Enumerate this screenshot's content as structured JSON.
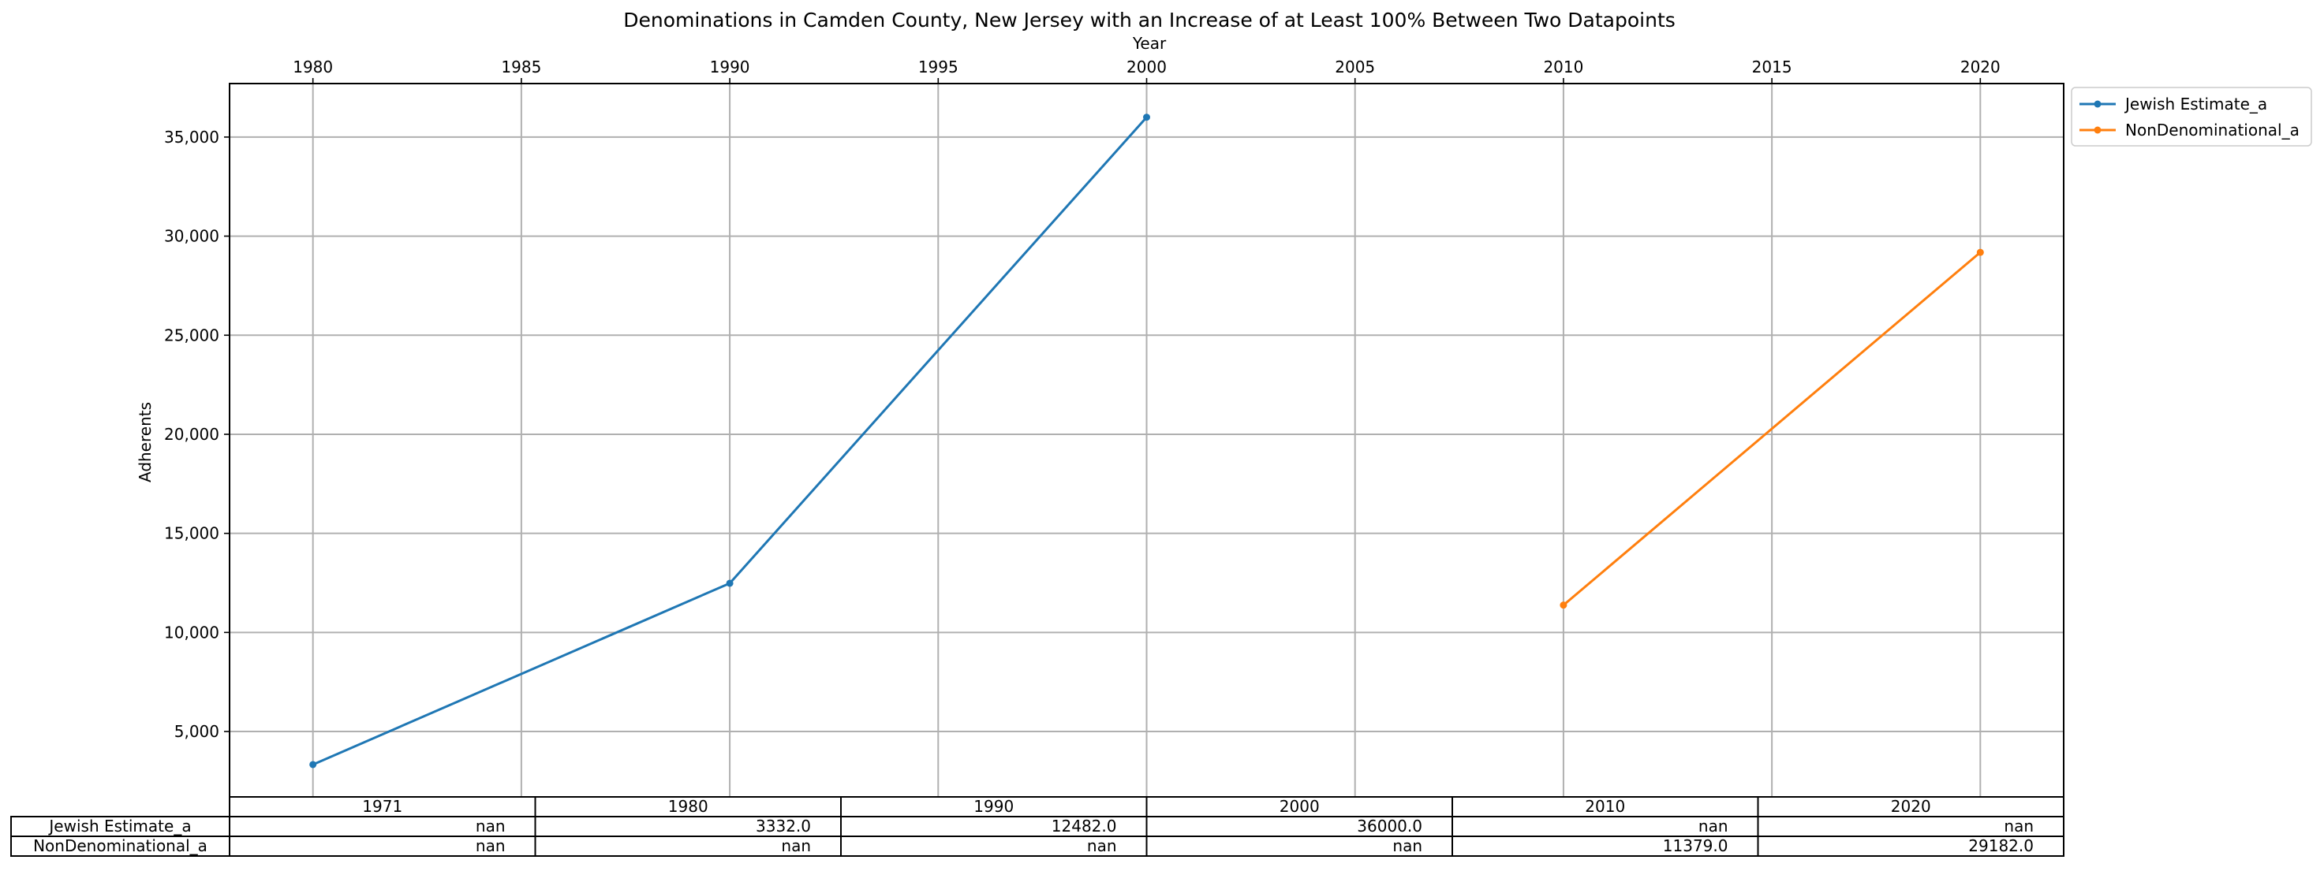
{
  "chart_data": {
    "type": "line",
    "title": "Denominations in Camden County, New Jersey with an Increase of at Least 100% Between Two Datapoints",
    "xlabel": "Year",
    "ylabel": "Adherents",
    "xlim": [
      1978,
      2022
    ],
    "ylim": [
      1700,
      37700
    ],
    "x_ticks": [
      1980,
      1985,
      1990,
      1995,
      2000,
      2005,
      2010,
      2015,
      2020
    ],
    "y_ticks": [
      5000,
      10000,
      15000,
      20000,
      25000,
      30000,
      35000
    ],
    "y_tick_labels": [
      "5,000",
      "10,000",
      "15,000",
      "20,000",
      "25,000",
      "30,000",
      "35,000"
    ],
    "x_axis_position": "top",
    "grid": true,
    "legend_placement": "outside upper right",
    "series": [
      {
        "name": "Jewish Estimate_a",
        "color": "#1f77b4",
        "points": [
          [
            1980,
            3332.0
          ],
          [
            1990,
            12482.0
          ],
          [
            2000,
            36000.0
          ]
        ]
      },
      {
        "name": "NonDenominational_a",
        "color": "#ff7f0e",
        "points": [
          [
            2010,
            11379.0
          ],
          [
            2020,
            29182.0
          ]
        ]
      }
    ],
    "table": {
      "columns": [
        "1971",
        "1980",
        "1990",
        "2000",
        "2010",
        "2020"
      ],
      "rows": [
        {
          "label": "Jewish Estimate_a",
          "cells": [
            "nan",
            "3332.0",
            "12482.0",
            "36000.0",
            "nan",
            "nan"
          ]
        },
        {
          "label": "NonDenominational_a",
          "cells": [
            "nan",
            "nan",
            "nan",
            "nan",
            "11379.0",
            "29182.0"
          ]
        }
      ]
    }
  }
}
